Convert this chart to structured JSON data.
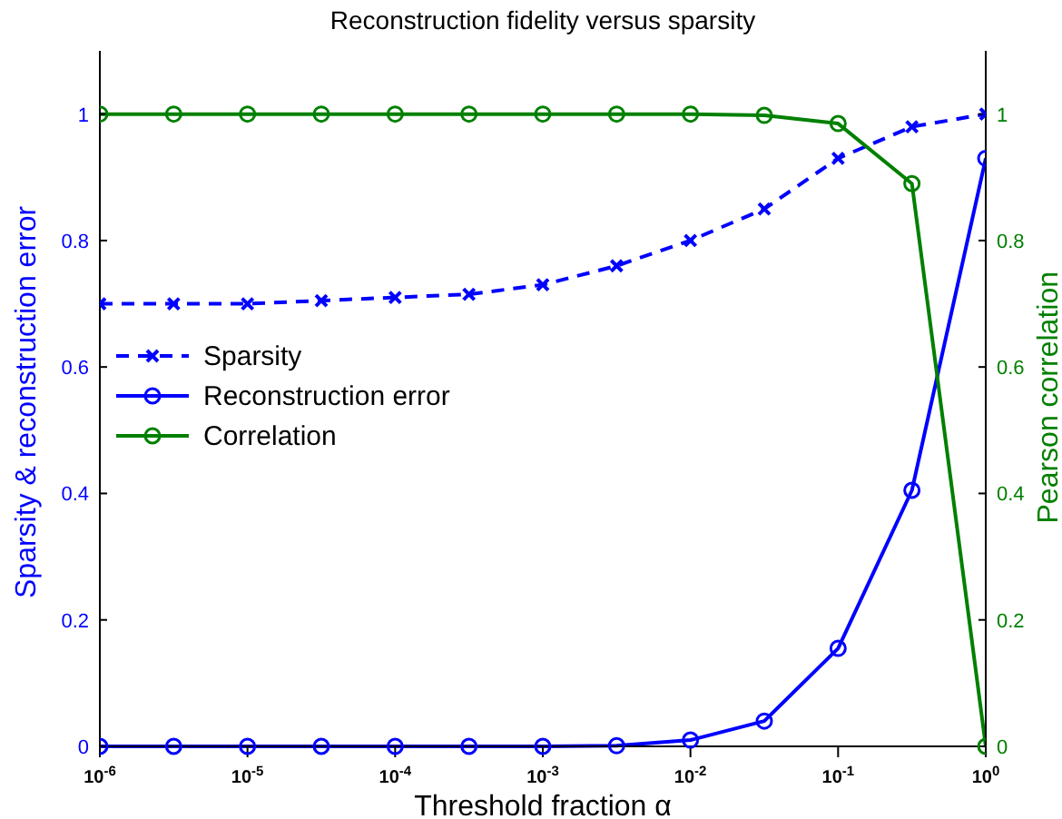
{
  "chart_data": {
    "type": "line",
    "title": "Reconstruction fidelity versus sparsity",
    "xlabel": "Threshold fraction α",
    "ylabel": "Sparsity & reconstruction error",
    "y2label": "Pearson correlation",
    "x": [
      1e-06,
      3.1623e-06,
      1e-05,
      3.1623e-05,
      0.0001,
      0.00031623,
      0.001,
      0.0031623,
      0.01,
      0.031623,
      0.1,
      0.31623,
      1
    ],
    "series": [
      {
        "name": "Sparsity",
        "color": "#0000ff",
        "marker": "cross",
        "line_style": "dashed",
        "values": [
          0.7,
          0.7,
          0.7,
          0.705,
          0.71,
          0.715,
          0.73,
          0.76,
          0.8,
          0.85,
          0.93,
          0.98,
          1.0
        ]
      },
      {
        "name": "Reconstruction error",
        "color": "#0000ff",
        "marker": "circle",
        "line_style": "solid",
        "values": [
          0,
          0,
          0,
          0,
          0,
          0,
          0,
          0.001,
          0.01,
          0.04,
          0.155,
          0.405,
          0.93
        ]
      },
      {
        "name": "Correlation",
        "color": "#008000",
        "marker": "circle",
        "line_style": "solid",
        "axis": "y2",
        "values": [
          1,
          1,
          1,
          1,
          1,
          1,
          1,
          1,
          1,
          0.998,
          0.985,
          0.89,
          0
        ]
      }
    ],
    "log": "x",
    "xlim": [
      1e-06,
      1
    ],
    "xticks": [
      {
        "value": 1e-06,
        "label": "10$^{-6}$"
      },
      {
        "value": 1e-05,
        "label": "10$^{-5}$"
      },
      {
        "value": 0.0001,
        "label": "10$^{-4}$"
      },
      {
        "value": 0.001,
        "label": "10$^{-3}$"
      },
      {
        "value": 0.01,
        "label": "10$^{-2}$"
      },
      {
        "value": 0.1,
        "label": "10$^{-1}$"
      },
      {
        "value": 1,
        "label": "10$^{0}$"
      }
    ],
    "ylim": [
      0,
      1.1
    ],
    "yticks": [
      0,
      0.2,
      0.4,
      0.6,
      0.8,
      1
    ],
    "y2lim": [
      0,
      1.1
    ],
    "y2ticks": [
      0,
      0.2,
      0.4,
      0.6,
      0.8,
      1
    ],
    "legend": "left",
    "grid": false
  }
}
